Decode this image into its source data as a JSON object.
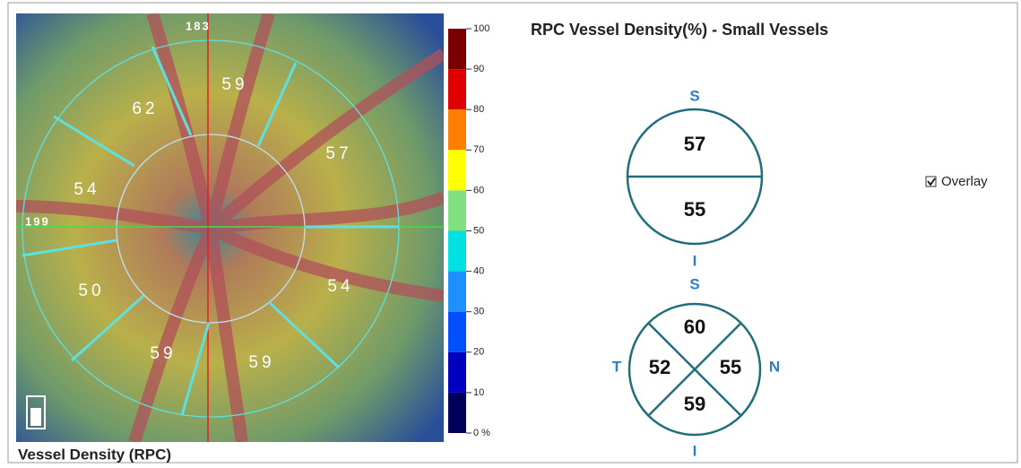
{
  "image": {
    "top_label": "183",
    "left_label": "199",
    "sectors": [
      59,
      57,
      54,
      59,
      59,
      50,
      54,
      62
    ],
    "caption": "Vessel Density (RPC)"
  },
  "colorbar": {
    "ticks": [
      100,
      90,
      80,
      70,
      60,
      50,
      40,
      30,
      20,
      10,
      {
        "value": 0,
        "label": "0 %"
      }
    ],
    "colors": [
      "#7a0000",
      "#e00000",
      "#ff8000",
      "#ffff00",
      "#80e080",
      "#00e0e0",
      "#1e90ff",
      "#0050ff",
      "#0000c0",
      "#00005a"
    ]
  },
  "panel": {
    "title": "RPC Vessel Density(%) - Small Vessels",
    "hemi": {
      "top_label": "S",
      "bottom_label": "I",
      "values": [
        57,
        55
      ]
    },
    "quadrants": {
      "top_label": "S",
      "left_label": "T",
      "right_label": "N",
      "bottom_label": "I",
      "values": [
        60,
        52,
        55,
        59
      ]
    }
  },
  "overlay": {
    "label": "Overlay",
    "checked": true
  }
}
